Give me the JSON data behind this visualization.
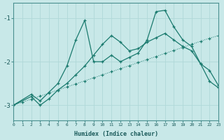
{
  "xlabel": "Humidex (Indice chaleur)",
  "bg_color": "#c8e8e8",
  "grid_color": "#b0d8d8",
  "line_color": "#1a7a6e",
  "xlim": [
    0,
    23
  ],
  "ylim": [
    -3.35,
    -0.65
  ],
  "yticks": [
    -3,
    -2,
    -1
  ],
  "xticks": [
    0,
    1,
    2,
    3,
    4,
    5,
    6,
    7,
    8,
    9,
    10,
    11,
    12,
    13,
    14,
    15,
    16,
    17,
    18,
    19,
    20,
    21,
    22,
    23
  ],
  "s1_x": [
    0,
    1,
    2,
    3,
    4,
    5,
    6,
    7,
    8,
    9,
    10,
    11,
    12,
    13,
    14,
    15,
    16,
    17,
    18,
    19,
    20,
    21,
    22,
    23
  ],
  "s1_y": [
    -3.0,
    -2.93,
    -2.86,
    -2.79,
    -2.72,
    -2.65,
    -2.58,
    -2.51,
    -2.44,
    -2.37,
    -2.3,
    -2.23,
    -2.16,
    -2.09,
    -2.02,
    -1.95,
    -1.88,
    -1.81,
    -1.74,
    -1.67,
    -1.6,
    -1.53,
    -1.46,
    -1.4
  ],
  "s2_x": [
    0,
    2,
    3,
    4,
    5,
    6,
    7,
    8,
    9,
    10,
    11,
    12,
    13,
    14,
    15,
    16,
    17,
    18,
    19,
    20,
    21,
    22,
    23
  ],
  "s2_y": [
    -3.0,
    -2.8,
    -3.0,
    -2.85,
    -2.65,
    -2.5,
    -2.3,
    -2.1,
    -1.85,
    -1.6,
    -1.4,
    -1.55,
    -1.75,
    -1.7,
    -1.55,
    -1.45,
    -1.35,
    -1.5,
    -1.65,
    -1.75,
    -2.05,
    -2.2,
    -2.55
  ],
  "s3_x": [
    0,
    2,
    3,
    4,
    5,
    6,
    7,
    8,
    9,
    10,
    11,
    12,
    13,
    14,
    15,
    16,
    17,
    18,
    19,
    20,
    21,
    22,
    23
  ],
  "s3_y": [
    -3.0,
    -2.75,
    -2.9,
    -2.7,
    -2.5,
    -2.1,
    -1.5,
    -1.05,
    -2.0,
    -2.0,
    -1.85,
    -2.0,
    -1.9,
    -1.8,
    -1.5,
    -0.85,
    -0.82,
    -1.2,
    -1.5,
    -1.65,
    -2.05,
    -2.45,
    -2.6
  ]
}
